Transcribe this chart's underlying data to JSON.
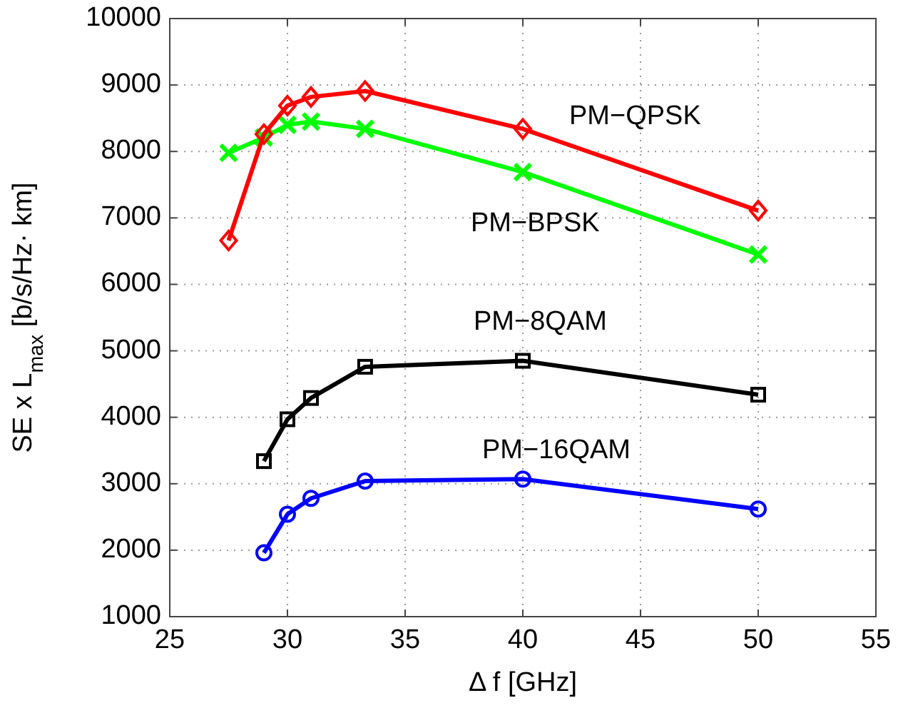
{
  "chart_data": {
    "type": "line",
    "xlabel": "Δ f [GHz]",
    "ylabel": "SE x L$_{max}$ [b/s/Hz· km]",
    "xlim": [
      25,
      55
    ],
    "xticks": [
      25,
      30,
      35,
      40,
      45,
      50,
      55
    ],
    "ylim": [
      1000,
      10000
    ],
    "yticks": [
      1000,
      2000,
      3000,
      4000,
      5000,
      6000,
      7000,
      8000,
      9000,
      10000
    ],
    "grid": true,
    "line_style": "solid",
    "series": [
      {
        "name": "PM−QPSK",
        "color": "#ff0000",
        "marker": "diamond",
        "x": [
          27.5,
          29,
          30,
          31,
          33.3,
          40,
          50
        ],
        "values": [
          6660,
          8260,
          8690,
          8820,
          8910,
          8340,
          7110
        ]
      },
      {
        "name": "PM−BPSK",
        "color": "#00ff00",
        "marker": "cross",
        "x": [
          27.5,
          29,
          30,
          31,
          33.3,
          40,
          50
        ],
        "values": [
          7980,
          8210,
          8400,
          8450,
          8340,
          7690,
          6450
        ]
      },
      {
        "name": "PM−8QAM",
        "color": "#000000",
        "marker": "square",
        "x": [
          29,
          30,
          31,
          33.3,
          40,
          50
        ],
        "values": [
          3340,
          3970,
          4290,
          4760,
          4850,
          4340
        ]
      },
      {
        "name": "PM−16QAM",
        "color": "#0000ff",
        "marker": "circle",
        "x": [
          29,
          30,
          31,
          33.3,
          40,
          50
        ],
        "values": [
          1960,
          2540,
          2780,
          3040,
          3070,
          2620
        ]
      }
    ]
  }
}
